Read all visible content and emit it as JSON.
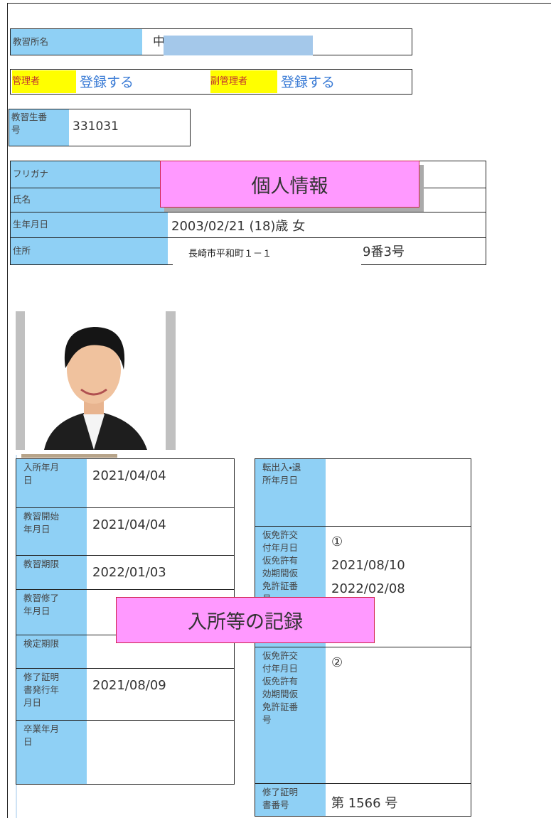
{
  "school": {
    "label": "教習所名",
    "value": "中"
  },
  "managers": {
    "manager_label": "管理者",
    "manager_value": "登録する",
    "sub_label": "副管理者",
    "sub_value": "登録する"
  },
  "student_number": {
    "label": "教習生番号",
    "value": "331031"
  },
  "personal": {
    "rows": [
      {
        "label": "フリガナ"
      },
      {
        "label": "氏名"
      },
      {
        "label": "生年月日",
        "value": "2003/02/21 (18)歳 女"
      },
      {
        "label": "住所",
        "value": "9番3号"
      }
    ],
    "address_overlay": "長崎市平和町１－１",
    "banner": "個人情報"
  },
  "admission": {
    "left_rows": [
      {
        "label": "入所年月日",
        "value": "2021/04/04"
      },
      {
        "label": "教習開始年月日",
        "value": "2021/04/04"
      },
      {
        "label": "教習期限",
        "value": "2022/01/03"
      },
      {
        "label": "教習修了年月日"
      },
      {
        "label": "検定期限"
      },
      {
        "label": "修了証明書発行年月日",
        "value": "2021/08/09"
      },
      {
        "label": "卒業年月日"
      }
    ],
    "right_rows": [
      {
        "label": "転出入・退所年月日"
      },
      {
        "label": "仮免許交付年月日仮免許有効期間仮免許証番号",
        "value_lines": [
          "①",
          "2021/08/10",
          "2022/02/08"
        ]
      },
      {
        "label": "仮免許交付年月日仮免許有効期間仮免許証番号",
        "value_lines": [
          "②"
        ]
      },
      {
        "label": "修了証明書番号",
        "value": "第 1566 号"
      }
    ],
    "banner": "入所等の記録"
  }
}
